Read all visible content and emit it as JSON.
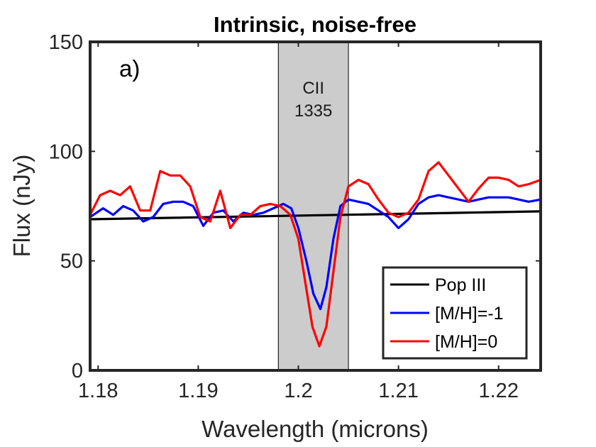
{
  "chart_data": {
    "type": "line",
    "title": "Intrinsic, noise-free",
    "panel_label": "a)",
    "xlabel": "Wavelength (microns)",
    "ylabel": "Flux (nJy)",
    "xlim": [
      1.1792,
      1.2242
    ],
    "ylim": [
      0,
      150
    ],
    "xticks": [
      1.18,
      1.19,
      1.2,
      1.21,
      1.22
    ],
    "xtick_labels": [
      "1.18",
      "1.19",
      "1.2",
      "1.21",
      "1.22"
    ],
    "yticks": [
      0,
      50,
      100,
      150
    ],
    "ytick_labels": [
      "0",
      "50",
      "100",
      "150"
    ],
    "shaded_band": {
      "x_range": [
        1.198,
        1.205
      ],
      "label_line1": "CII",
      "label_line2": "1335",
      "color": "#cccccc"
    },
    "legend_position": "bottom-right",
    "series": [
      {
        "name": "Pop III",
        "color": "#000000",
        "x": [
          1.1792,
          1.2242
        ],
        "values": [
          69.0,
          72.6
        ]
      },
      {
        "name": "[M/H]=-1",
        "color": "#0000ff",
        "x": [
          1.1792,
          1.1805,
          1.1815,
          1.1825,
          1.1835,
          1.1845,
          1.1855,
          1.1865,
          1.1875,
          1.1885,
          1.1895,
          1.1905,
          1.1915,
          1.1925,
          1.1935,
          1.1945,
          1.1955,
          1.1965,
          1.1975,
          1.1985,
          1.1993,
          1.2,
          1.2008,
          1.2015,
          1.2022,
          1.2028,
          1.2035,
          1.2042,
          1.205,
          1.206,
          1.207,
          1.208,
          1.209,
          1.21,
          1.211,
          1.212,
          1.213,
          1.214,
          1.215,
          1.216,
          1.217,
          1.218,
          1.219,
          1.22,
          1.221,
          1.222,
          1.223,
          1.2242
        ],
        "values": [
          70,
          74,
          71,
          75,
          73,
          68,
          70,
          76,
          77,
          77,
          75,
          66,
          72,
          73,
          68,
          72,
          71,
          72,
          74,
          76,
          74,
          65,
          50,
          35,
          28,
          38,
          60,
          75,
          78,
          77,
          76,
          73,
          70,
          65,
          69,
          76,
          79,
          80,
          79,
          78,
          77,
          78,
          79,
          79,
          79,
          78,
          77,
          78
        ]
      },
      {
        "name": "[M/H]=0",
        "color": "#ff0000",
        "x": [
          1.1792,
          1.1802,
          1.1812,
          1.1822,
          1.1832,
          1.1842,
          1.1852,
          1.1862,
          1.1872,
          1.1882,
          1.1892,
          1.1902,
          1.1912,
          1.1922,
          1.1932,
          1.1942,
          1.1952,
          1.1962,
          1.1972,
          1.1982,
          1.1992,
          1.2,
          1.2007,
          1.2014,
          1.2021,
          1.2028,
          1.2035,
          1.2042,
          1.205,
          1.206,
          1.207,
          1.208,
          1.209,
          1.21,
          1.211,
          1.212,
          1.213,
          1.214,
          1.215,
          1.216,
          1.217,
          1.218,
          1.219,
          1.22,
          1.221,
          1.222,
          1.223,
          1.2242
        ],
        "values": [
          71,
          80,
          82,
          80,
          84,
          73,
          73,
          91,
          89,
          89,
          84,
          70,
          68,
          82,
          65,
          71,
          71,
          75,
          76,
          75,
          71,
          60,
          40,
          20,
          11,
          20,
          45,
          70,
          84,
          87,
          85,
          78,
          72,
          70,
          72,
          78,
          91,
          95,
          89,
          83,
          77,
          83,
          88,
          88,
          87,
          84,
          85,
          87
        ]
      }
    ]
  }
}
